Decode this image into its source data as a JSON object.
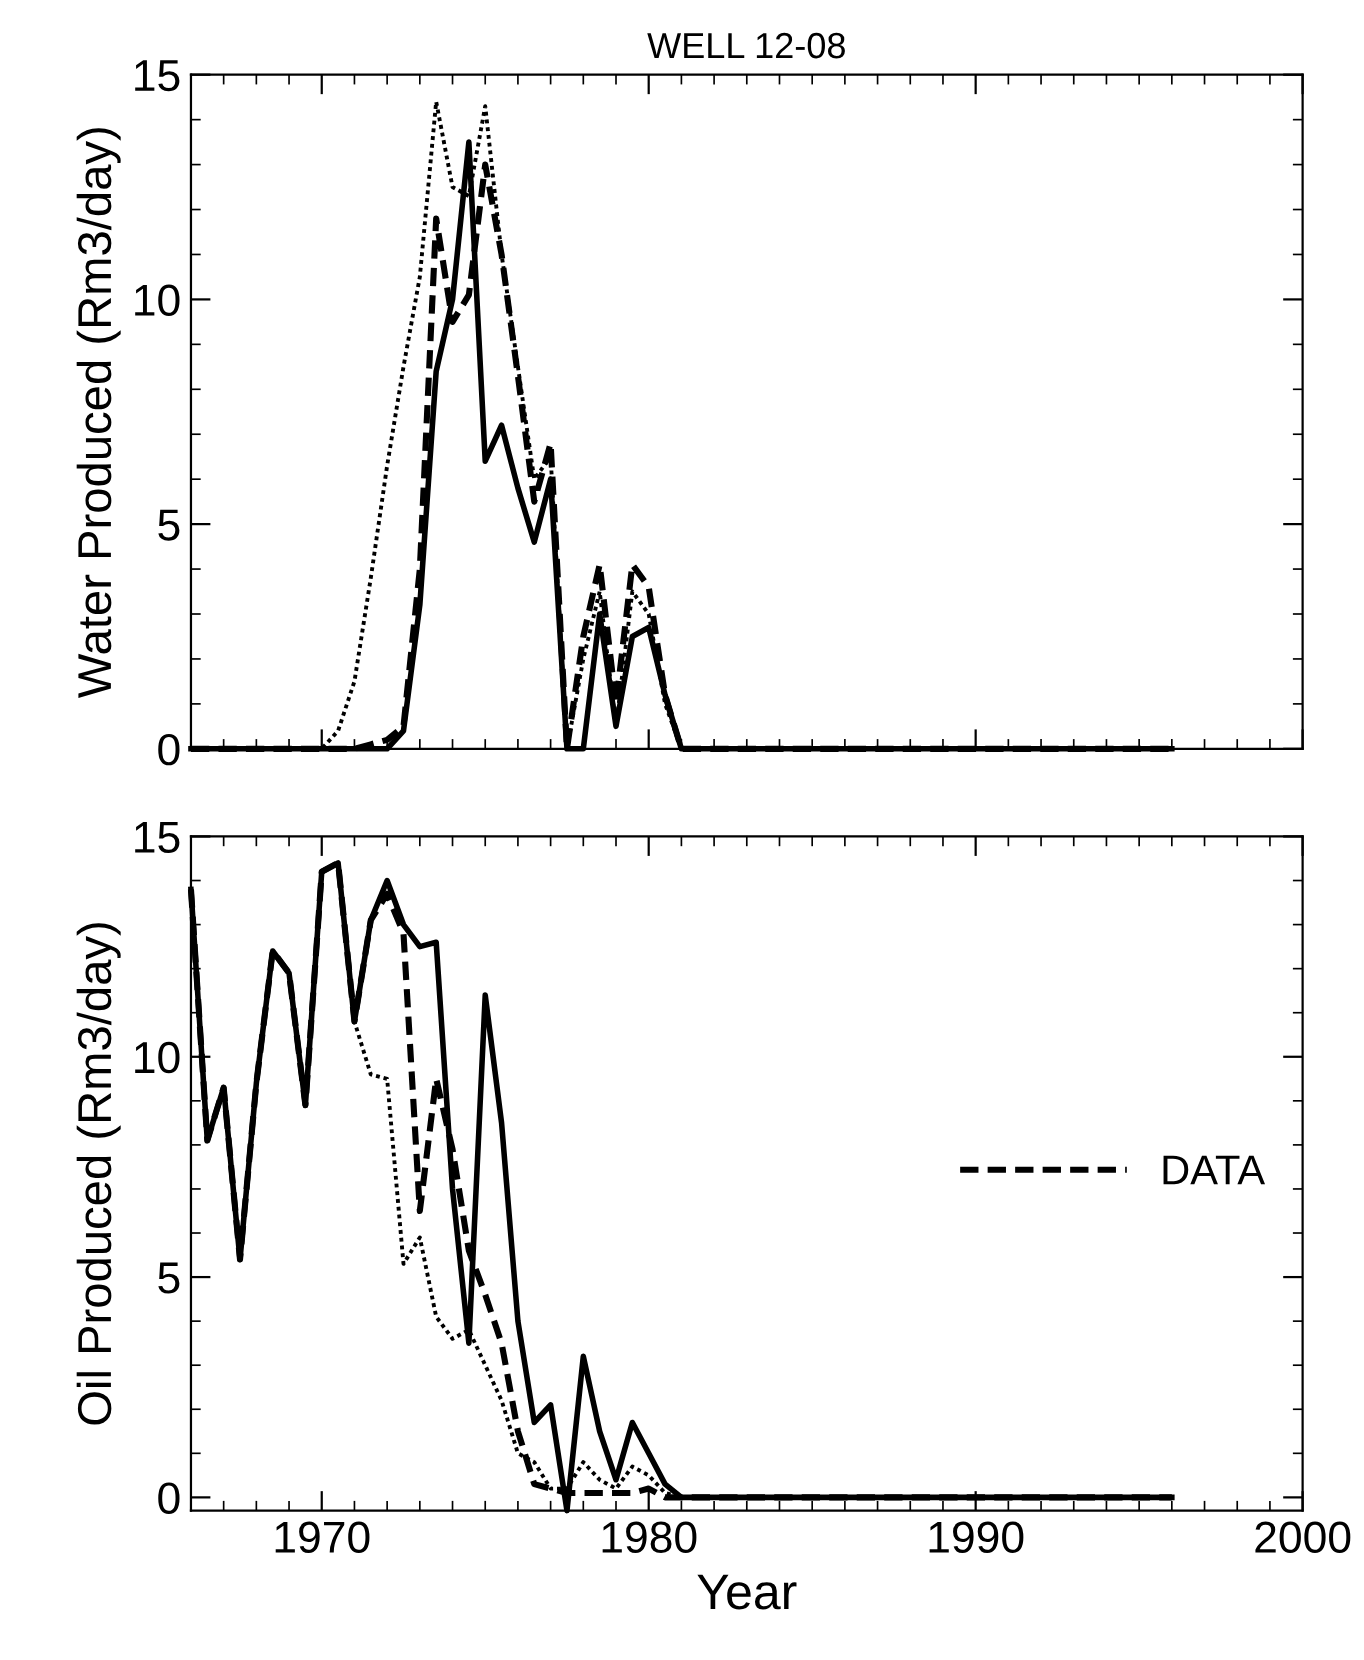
{
  "chart_data": [
    {
      "type": "line",
      "title": "WELL 12-08",
      "ylabel": "Water Produced (Rm3/day)",
      "x": [
        1966,
        1966.5,
        1967,
        1967.5,
        1968,
        1968.5,
        1969,
        1969.5,
        1970,
        1970.5,
        1971,
        1971.5,
        1972,
        1972.5,
        1973,
        1973.5,
        1974,
        1974.5,
        1975,
        1975.5,
        1976,
        1976.5,
        1977,
        1977.5,
        1978,
        1978.5,
        1979,
        1979.5,
        1980,
        1980.5,
        1981,
        1996
      ],
      "series": [
        {
          "color": "#000000",
          "line_style": "dashed",
          "values": [
            0,
            0,
            0,
            0,
            0,
            0,
            0,
            0,
            0,
            0,
            0,
            0.1,
            0.2,
            0.5,
            4,
            11.8,
            9.5,
            10.1,
            13.0,
            11.0,
            8.3,
            5.5,
            6.8,
            0,
            2.5,
            4.1,
            1.0,
            4.1,
            3.6,
            1.2,
            0,
            0
          ]
        },
        {
          "color": "#000000",
          "line_style": "dotted",
          "values": [
            0,
            0,
            0,
            0,
            0,
            0,
            0,
            0,
            0,
            0.4,
            1.5,
            3.8,
            6.3,
            8.5,
            10.5,
            14.4,
            12.5,
            12.3,
            14.3,
            11.0,
            8.5,
            6.0,
            6.5,
            0,
            2.0,
            3.5,
            0.5,
            3.5,
            3.0,
            1.0,
            0,
            0
          ]
        },
        {
          "color": "#000000",
          "line_style": "solid",
          "values": [
            0,
            0,
            0,
            0,
            0,
            0,
            0,
            0,
            0,
            0,
            0,
            0,
            0,
            0.4,
            3.2,
            8.4,
            10.0,
            13.5,
            6.4,
            7.2,
            5.8,
            4.6,
            6.0,
            0,
            0,
            3.0,
            0.5,
            2.5,
            2.7,
            1.2,
            0,
            0
          ]
        }
      ],
      "xlim": [
        1966,
        2000
      ],
      "xticks": [
        1970,
        1980,
        1990,
        2000
      ],
      "ylim": [
        0,
        15
      ],
      "yticks": [
        0,
        5,
        10,
        15
      ],
      "tick_labels": "y",
      "legend": false,
      "grid": false
    },
    {
      "type": "line",
      "xlabel": "Year",
      "ylabel": "Oil Produced (Rm3/day)",
      "x": [
        1966,
        1966.5,
        1967,
        1967.5,
        1968,
        1968.5,
        1969,
        1969.5,
        1970,
        1970.5,
        1971,
        1971.5,
        1972,
        1972.5,
        1973,
        1973.5,
        1974,
        1974.5,
        1975,
        1975.5,
        1976,
        1976.5,
        1977,
        1977.5,
        1978,
        1978.5,
        1979,
        1979.5,
        1980,
        1980.5,
        1981,
        1996
      ],
      "series": [
        {
          "name": "DATA",
          "color": "#000000",
          "line_style": "dashed",
          "values": [
            13.8,
            8.1,
            9.3,
            5.4,
            9.4,
            12.4,
            11.9,
            8.9,
            14.2,
            14.4,
            10.8,
            13.1,
            13.7,
            12.8,
            6.5,
            9.5,
            7.9,
            5.6,
            4.6,
            3.5,
            1.5,
            0.3,
            0.2,
            0.1,
            0.1,
            0.1,
            0.1,
            0.1,
            0.2,
            0,
            0,
            0
          ]
        },
        {
          "color": "#000000",
          "line_style": "dotted",
          "values": [
            13.8,
            8.1,
            9.3,
            5.4,
            9.4,
            12.4,
            11.9,
            8.9,
            14.2,
            14.4,
            10.8,
            9.6,
            9.5,
            5.3,
            5.9,
            4.1,
            3.6,
            3.8,
            3.0,
            2.2,
            1.0,
            0.8,
            0.2,
            0.2,
            0.8,
            0.4,
            0.2,
            0.7,
            0.5,
            0.1,
            0,
            0
          ]
        },
        {
          "color": "#000000",
          "line_style": "solid",
          "values": [
            13.8,
            8.1,
            9.3,
            5.4,
            9.4,
            12.4,
            11.9,
            8.9,
            14.2,
            14.4,
            10.8,
            13.1,
            14.0,
            13.0,
            12.5,
            12.6,
            7.0,
            3.5,
            11.4,
            8.5,
            4.0,
            1.7,
            2.1,
            -0.3,
            3.2,
            1.5,
            0.4,
            1.7,
            1.0,
            0.3,
            0,
            0
          ]
        }
      ],
      "xlim": [
        1966,
        2000
      ],
      "xticks": [
        1970,
        1980,
        1990,
        2000
      ],
      "ylim": [
        -0.3,
        15
      ],
      "yticks": [
        0,
        5,
        10,
        15
      ],
      "legend": "right",
      "grid": false
    }
  ]
}
